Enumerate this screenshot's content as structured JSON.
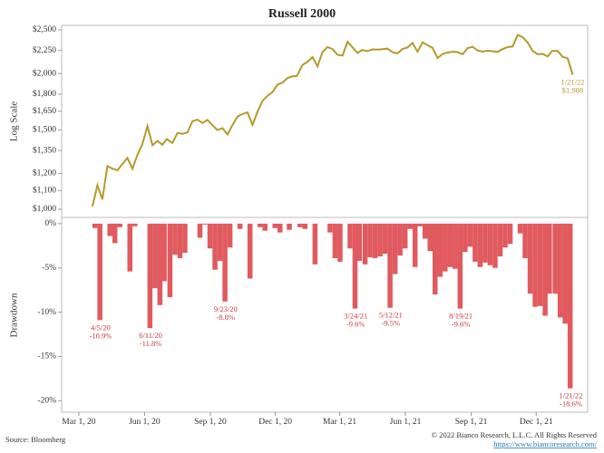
{
  "chart_data": [
    {
      "type": "line",
      "title": "Russell 2000",
      "ylabel": "Log Scale",
      "log_scale": true,
      "color": "#b39a2c",
      "xlim": [
        "2020-02-06",
        "2022-02-11"
      ],
      "ylim": [
        959,
        2558
      ],
      "yticks": [
        {
          "value": 1000,
          "label": "$1,000"
        },
        {
          "value": 1100,
          "label": "$1,100"
        },
        {
          "value": 1200,
          "label": "$1,200"
        },
        {
          "value": 1350,
          "label": "$1,350"
        },
        {
          "value": 1500,
          "label": "$1,500"
        },
        {
          "value": 1650,
          "label": "$1,650"
        },
        {
          "value": 1800,
          "label": "$1,800"
        },
        {
          "value": 2000,
          "label": "$2,000"
        },
        {
          "value": 2250,
          "label": "$2,250"
        },
        {
          "value": 2500,
          "label": "$2,500"
        }
      ],
      "x": [
        "2020-03-20",
        "2020-03-27",
        "2020-04-03",
        "2020-04-10",
        "2020-04-17",
        "2020-04-24",
        "2020-05-01",
        "2020-05-08",
        "2020-05-15",
        "2020-05-22",
        "2020-05-29",
        "2020-06-05",
        "2020-06-12",
        "2020-06-19",
        "2020-06-26",
        "2020-07-02",
        "2020-07-10",
        "2020-07-17",
        "2020-07-24",
        "2020-07-31",
        "2020-08-07",
        "2020-08-14",
        "2020-08-21",
        "2020-08-28",
        "2020-09-04",
        "2020-09-11",
        "2020-09-18",
        "2020-09-25",
        "2020-10-02",
        "2020-10-09",
        "2020-10-16",
        "2020-10-23",
        "2020-10-30",
        "2020-11-06",
        "2020-11-13",
        "2020-11-20",
        "2020-11-27",
        "2020-12-04",
        "2020-12-11",
        "2020-12-18",
        "2020-12-24",
        "2020-12-31",
        "2021-01-08",
        "2021-01-15",
        "2021-01-22",
        "2021-01-29",
        "2021-02-05",
        "2021-02-12",
        "2021-02-19",
        "2021-02-26",
        "2021-03-05",
        "2021-03-12",
        "2021-03-19",
        "2021-03-26",
        "2021-04-01",
        "2021-04-09",
        "2021-04-16",
        "2021-04-23",
        "2021-04-30",
        "2021-05-07",
        "2021-05-14",
        "2021-05-21",
        "2021-05-28",
        "2021-06-04",
        "2021-06-11",
        "2021-06-18",
        "2021-06-25",
        "2021-07-02",
        "2021-07-09",
        "2021-07-16",
        "2021-07-23",
        "2021-07-30",
        "2021-08-06",
        "2021-08-13",
        "2021-08-20",
        "2021-08-27",
        "2021-09-03",
        "2021-09-10",
        "2021-09-17",
        "2021-09-24",
        "2021-10-01",
        "2021-10-08",
        "2021-10-15",
        "2021-10-22",
        "2021-10-29",
        "2021-11-05",
        "2021-11-12",
        "2021-11-19",
        "2021-11-26",
        "2021-12-03",
        "2021-12-10",
        "2021-12-17",
        "2021-12-23",
        "2021-12-31",
        "2022-01-07",
        "2022-01-14",
        "2022-01-21"
      ],
      "values": [
        1014,
        1131,
        1052,
        1247,
        1230,
        1220,
        1260,
        1300,
        1230,
        1320,
        1394,
        1530,
        1387,
        1418,
        1390,
        1431,
        1403,
        1476,
        1470,
        1480,
        1568,
        1580,
        1554,
        1578,
        1536,
        1498,
        1513,
        1465,
        1537,
        1606,
        1626,
        1640,
        1538,
        1644,
        1740,
        1785,
        1820,
        1890,
        1909,
        1955,
        1970,
        1975,
        2091,
        2124,
        2175,
        2074,
        2233,
        2290,
        2266,
        2201,
        2192,
        2352,
        2286,
        2221,
        2254,
        2243,
        2263,
        2260,
        2266,
        2271,
        2229,
        2218,
        2268,
        2286,
        2338,
        2237,
        2345,
        2311,
        2280,
        2164,
        2210,
        2226,
        2236,
        2232,
        2207,
        2277,
        2292,
        2250,
        2237,
        2248,
        2241,
        2234,
        2266,
        2289,
        2297,
        2437,
        2410,
        2343,
        2245,
        2207,
        2211,
        2183,
        2245,
        2245,
        2179,
        2162,
        1988
      ],
      "annotations": [
        {
          "x": "2022-01-21",
          "date": "1/21/22",
          "label": "$1,988"
        }
      ]
    },
    {
      "type": "bar",
      "ylabel": "Drawdown",
      "color": "#e05a5e",
      "xlim": [
        "2020-02-06",
        "2022-02-11"
      ],
      "ylim": [
        -21.3,
        0.7
      ],
      "yticks": [
        {
          "value": 0,
          "label": "0%"
        },
        {
          "value": -5,
          "label": "-5%"
        },
        {
          "value": -10,
          "label": "-10%"
        },
        {
          "value": -15,
          "label": "-15%"
        },
        {
          "value": -20,
          "label": "-20%"
        }
      ],
      "xticks": [
        {
          "value": "2020-03-01",
          "label": "Mar 1, 20"
        },
        {
          "value": "2020-06-01",
          "label": "Jun 1, 20"
        },
        {
          "value": "2020-09-01",
          "label": "Sep 1, 20"
        },
        {
          "value": "2020-12-01",
          "label": "Dec 1, 20"
        },
        {
          "value": "2021-03-01",
          "label": "Mar 1, 21"
        },
        {
          "value": "2021-06-01",
          "label": "Jun 1, 21"
        },
        {
          "value": "2021-09-01",
          "label": "Sep 1, 21"
        },
        {
          "value": "2021-12-01",
          "label": "Dec 1, 21"
        }
      ],
      "x": [
        "2020-03-20",
        "2020-03-27",
        "2020-04-03",
        "2020-04-10",
        "2020-04-17",
        "2020-04-24",
        "2020-05-01",
        "2020-05-08",
        "2020-05-15",
        "2020-05-22",
        "2020-05-29",
        "2020-06-05",
        "2020-06-12",
        "2020-06-19",
        "2020-06-26",
        "2020-07-02",
        "2020-07-10",
        "2020-07-17",
        "2020-07-24",
        "2020-07-31",
        "2020-08-07",
        "2020-08-14",
        "2020-08-21",
        "2020-08-28",
        "2020-09-04",
        "2020-09-11",
        "2020-09-18",
        "2020-09-25",
        "2020-10-02",
        "2020-10-09",
        "2020-10-16",
        "2020-10-23",
        "2020-10-30",
        "2020-11-06",
        "2020-11-13",
        "2020-11-20",
        "2020-11-27",
        "2020-12-04",
        "2020-12-11",
        "2020-12-18",
        "2020-12-24",
        "2020-12-31",
        "2021-01-08",
        "2021-01-15",
        "2021-01-22",
        "2021-01-29",
        "2021-02-05",
        "2021-02-12",
        "2021-02-19",
        "2021-02-26",
        "2021-03-05",
        "2021-03-12",
        "2021-03-19",
        "2021-03-26",
        "2021-04-01",
        "2021-04-09",
        "2021-04-16",
        "2021-04-23",
        "2021-04-30",
        "2021-05-07",
        "2021-05-14",
        "2021-05-21",
        "2021-05-28",
        "2021-06-04",
        "2021-06-11",
        "2021-06-18",
        "2021-06-25",
        "2021-07-02",
        "2021-07-09",
        "2021-07-16",
        "2021-07-23",
        "2021-07-30",
        "2021-08-06",
        "2021-08-13",
        "2021-08-20",
        "2021-08-27",
        "2021-09-03",
        "2021-09-10",
        "2021-09-17",
        "2021-09-24",
        "2021-10-01",
        "2021-10-08",
        "2021-10-15",
        "2021-10-22",
        "2021-10-29",
        "2021-11-05",
        "2021-11-12",
        "2021-11-19",
        "2021-11-26",
        "2021-12-03",
        "2021-12-10",
        "2021-12-17",
        "2021-12-23",
        "2021-12-31",
        "2022-01-07",
        "2022-01-14",
        "2022-01-21"
      ],
      "values": [
        0,
        -0.5,
        -10.9,
        0,
        -1.4,
        -2.2,
        -0.4,
        0,
        -5.4,
        -0.3,
        0,
        0,
        -11.8,
        -7.3,
        -9.2,
        -6.5,
        -8.3,
        -3.5,
        -3.9,
        -3.3,
        0,
        0,
        -1.6,
        -0.1,
        -2.8,
        -5.2,
        -4.2,
        -8.8,
        -2.7,
        0,
        -0.6,
        0,
        -6.2,
        0,
        -0.4,
        -0.8,
        0,
        -0.5,
        -1.0,
        0,
        -0.7,
        0,
        -0.4,
        -0.6,
        0,
        -4.6,
        0,
        0,
        -1.0,
        -3.9,
        -4.3,
        0,
        -2.8,
        -9.6,
        -4.2,
        -4.6,
        -3.8,
        -3.9,
        -3.7,
        -3.4,
        -9.5,
        -5.7,
        -3.6,
        -2.8,
        -0.6,
        -4.9,
        -0.3,
        -1.7,
        -3.1,
        -8.0,
        -6.0,
        -5.4,
        -4.9,
        -5.1,
        -9.6,
        -3.2,
        -2.6,
        -4.3,
        -4.9,
        -4.4,
        -4.7,
        -5.0,
        -3.7,
        -2.7,
        -2.3,
        0,
        -1.1,
        -3.9,
        -7.9,
        -9.4,
        -9.3,
        -10.4,
        -7.9,
        -7.9,
        -10.6,
        -11.3,
        -18.6
      ],
      "annotations": [
        {
          "x": "2020-04-03",
          "date": "4/5/20",
          "label": "-10.9%"
        },
        {
          "x": "2020-06-12",
          "date": "6/11/20",
          "label": "-11.8%"
        },
        {
          "x": "2020-09-25",
          "date": "9/23/20",
          "label": "-8.8%"
        },
        {
          "x": "2021-03-26",
          "date": "3/24/21",
          "label": "-9.6%"
        },
        {
          "x": "2021-05-14",
          "date": "5/12/21",
          "label": "-9.5%"
        },
        {
          "x": "2021-08-20",
          "date": "8/19/21",
          "label": "-9.6%"
        },
        {
          "x": "2022-01-21",
          "date": "1/21/22",
          "label": "-18.6%"
        }
      ]
    }
  ],
  "footer": {
    "source": "Source: Bloomberg",
    "copyright": "© 2022 Bianco Research, L.L.C. All Rights Reserved",
    "url": "https://www.biancoresearch.com/"
  }
}
